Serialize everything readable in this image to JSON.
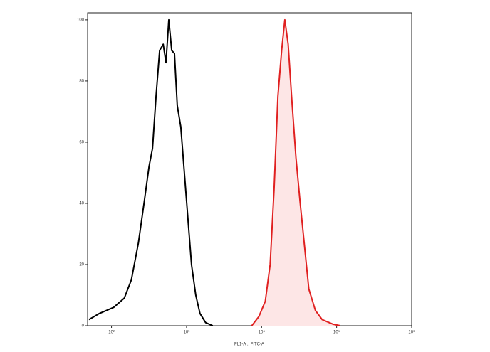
{
  "chart_data": {
    "type": "line",
    "x_label": "FL1-A :: FITC-A",
    "xscale": "log",
    "xlim": [
      48,
      1000000
    ],
    "xticks": [
      {
        "value": 100,
        "label": "10²"
      },
      {
        "value": 1000,
        "label": "10³"
      },
      {
        "value": 10000,
        "label": "10⁴"
      },
      {
        "value": 100000,
        "label": "10⁵"
      },
      {
        "value": 1000000,
        "label": "10⁶"
      }
    ],
    "ylim": [
      0,
      102.3
    ],
    "yticks": [
      0,
      20,
      40,
      60,
      80,
      100
    ],
    "series": [
      {
        "color": "#000000",
        "fill": null,
        "x": [
          50,
          69,
          107,
          148,
          184,
          228,
          271,
          316,
          352,
          392,
          438,
          489,
          532,
          580,
          634,
          690,
          752,
          838,
          935,
          1043,
          1164,
          1326,
          1510,
          1796,
          2234
        ],
        "values": [
          2,
          4,
          6,
          9,
          15,
          27,
          40,
          52,
          58,
          75,
          90,
          92,
          86,
          100,
          90,
          89,
          72,
          65,
          50,
          35,
          20,
          10,
          4,
          1,
          0
        ]
      },
      {
        "color": "#e02020",
        "fill": "#fde6e6",
        "x": [
          7400,
          9200,
          11200,
          13000,
          14700,
          16500,
          18500,
          20400,
          22600,
          25100,
          28700,
          32700,
          37700,
          42600,
          52100,
          64100,
          89000,
          112000
        ],
        "values": [
          0,
          3,
          8,
          20,
          45,
          75,
          90,
          100,
          92,
          75,
          55,
          40,
          25,
          12,
          5,
          2,
          0.5,
          0
        ]
      }
    ]
  }
}
